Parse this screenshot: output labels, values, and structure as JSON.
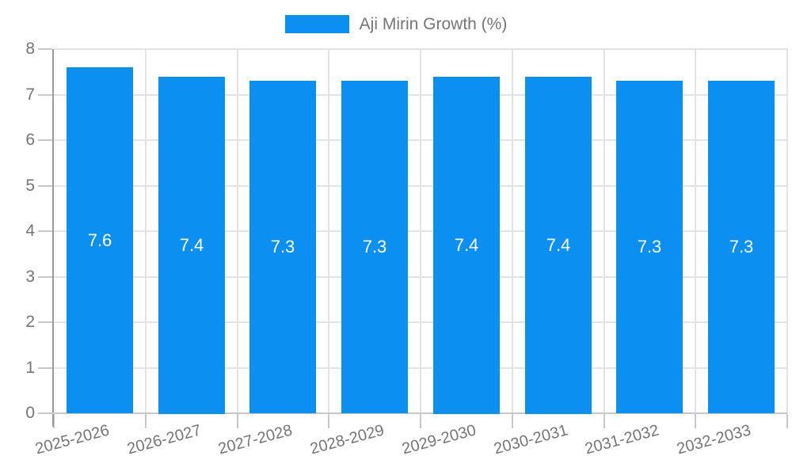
{
  "chart_data": {
    "type": "bar",
    "title": "",
    "legend": {
      "label": "Aji Mirin Growth (%)",
      "position": "top-center"
    },
    "categories": [
      "2025-2026",
      "2026-2027",
      "2027-2028",
      "2028-2029",
      "2029-2030",
      "2030-2031",
      "2031-2032",
      "2032-2033"
    ],
    "values": [
      7.6,
      7.4,
      7.3,
      7.3,
      7.4,
      7.4,
      7.3,
      7.3
    ],
    "data_labels": [
      "7.6",
      "7.4",
      "7.3",
      "7.3",
      "7.4",
      "7.4",
      "7.3",
      "7.3"
    ],
    "xlabel": "",
    "ylabel": "",
    "ylim": [
      0,
      8
    ],
    "yticks": [
      0,
      1,
      2,
      3,
      4,
      5,
      6,
      7,
      8
    ],
    "grid": true,
    "bar_labels_inside": true
  },
  "colors": {
    "bar": "#0b90f2",
    "bar_label": "#ffffff",
    "axis_text": "#757575",
    "legend_text": "#757575",
    "grid_line": "#e3e3e3",
    "axis_line_y": "#9a9a9a",
    "axis_line_x": "#c8c8c8",
    "tick_mark": "#c8c8c8",
    "background": "#ffffff"
  }
}
